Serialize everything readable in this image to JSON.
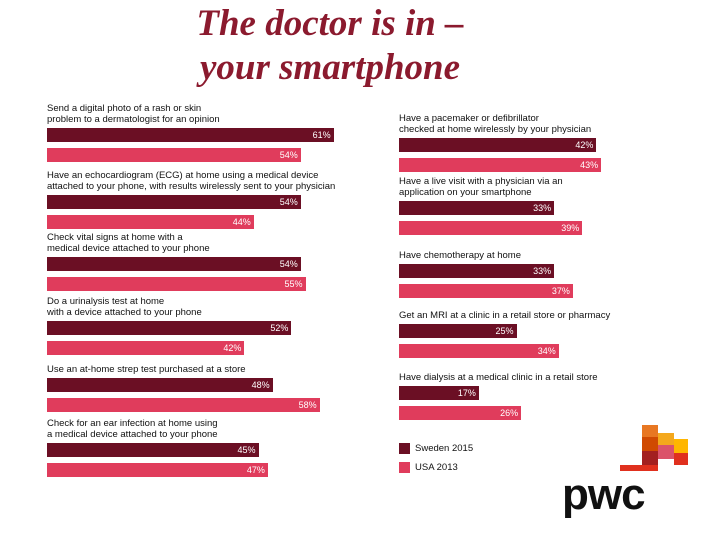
{
  "title": "The doctor is in –\nyour smartphone",
  "logo": "pwc",
  "chart_data": {
    "type": "bar",
    "orientation": "horizontal",
    "categories": [
      "Send a digital photo of a rash or skin\nproblem to a dermatologist for an opinion",
      "Have an echocardiogram (ECG) at home using a medical device\nattached to your phone, with results wirelessly sent to your physician",
      "Check vital signs at home with a\nmedical device attached to your phone",
      "Do a urinalysis test at home\nwith a device attached to your phone",
      "Use an at-home strep test purchased at a store",
      "Check for an ear infection at home using\na medical device attached to your phone",
      "Have a pacemaker or defibrillator\nchecked at home wirelessly by your physician",
      "Have a live visit with a physician via an\napplication on your smartphone",
      "Have chemotherapy at home",
      "Get an MRI at a clinic in a retail store or pharmacy",
      "Have dialysis at a medical clinic in a retail store"
    ],
    "series": [
      {
        "name": "Sweden 2015",
        "color": "#6b0f24",
        "values": [
          61,
          54,
          54,
          52,
          48,
          45,
          42,
          33,
          33,
          25,
          17
        ],
        "value_labels": [
          "61%",
          "54%",
          "54%",
          "52%",
          "48%",
          "45%",
          "42%",
          "33%",
          "33%",
          "25%",
          "17%"
        ]
      },
      {
        "name": "USA 2013",
        "color": "#e03c5c",
        "values": [
          54,
          44,
          55,
          42,
          58,
          47,
          43,
          39,
          37,
          34,
          26
        ],
        "value_labels": [
          "54%",
          "44%",
          "55%",
          "42%",
          "58%",
          "47%",
          "43%",
          "39%",
          "37%",
          "34%",
          "26%"
        ]
      }
    ],
    "legend": "bottom-right"
  }
}
